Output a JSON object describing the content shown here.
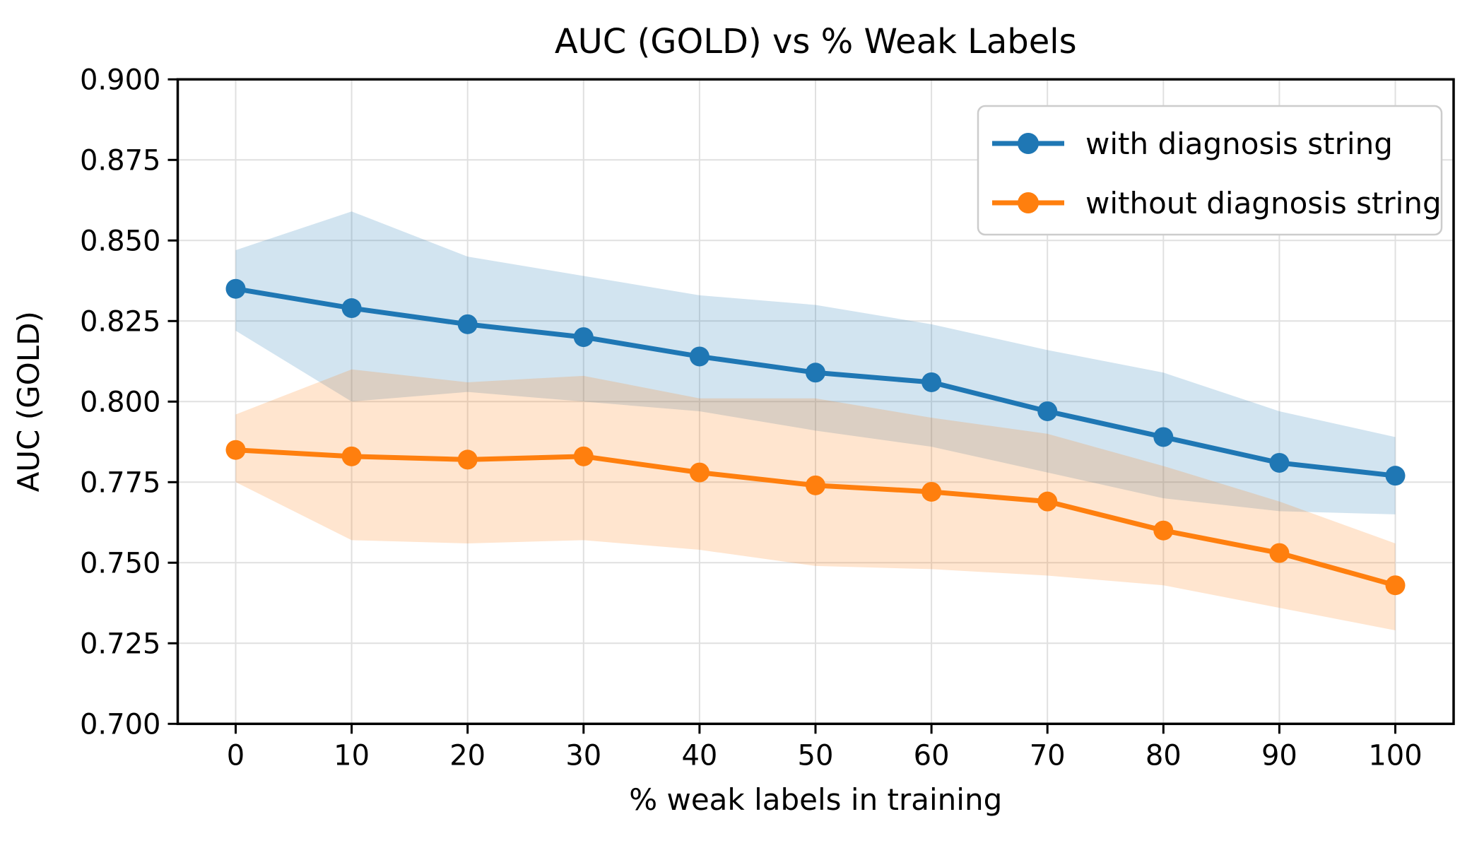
{
  "figure": {
    "background": "#ffffff",
    "grid_color": "#e0e0e0",
    "spine_color": "#000000",
    "legend_border_color": "#cccccc"
  },
  "chart_data": {
    "type": "line",
    "title": "AUC (GOLD) vs % Weak Labels",
    "xlabel": "% weak labels in training",
    "ylabel": "AUC (GOLD)",
    "x": [
      0,
      10,
      20,
      30,
      40,
      50,
      60,
      70,
      80,
      90,
      100
    ],
    "xtick_labels": [
      "0",
      "10",
      "20",
      "30",
      "40",
      "50",
      "60",
      "70",
      "80",
      "90",
      "100"
    ],
    "yticks": [
      0.7,
      0.725,
      0.75,
      0.775,
      0.8,
      0.825,
      0.85,
      0.875,
      0.9
    ],
    "ytick_labels": [
      "0.700",
      "0.725",
      "0.750",
      "0.775",
      "0.800",
      "0.825",
      "0.850",
      "0.875",
      "0.900"
    ],
    "xlim": [
      -5,
      105
    ],
    "ylim": [
      0.7,
      0.9
    ],
    "grid": true,
    "legend_position": "upper right",
    "band_opacity": 0.2,
    "series": [
      {
        "name": "with diagnosis string",
        "color": "#1f77b4",
        "values": [
          0.835,
          0.829,
          0.824,
          0.82,
          0.814,
          0.809,
          0.806,
          0.797,
          0.789,
          0.781,
          0.777
        ],
        "band_upper": [
          0.847,
          0.859,
          0.845,
          0.839,
          0.833,
          0.83,
          0.824,
          0.816,
          0.809,
          0.797,
          0.789
        ],
        "band_lower": [
          0.822,
          0.8,
          0.803,
          0.8,
          0.797,
          0.791,
          0.786,
          0.778,
          0.77,
          0.766,
          0.765
        ]
      },
      {
        "name": "without diagnosis string",
        "color": "#ff7f0e",
        "values": [
          0.785,
          0.783,
          0.782,
          0.783,
          0.778,
          0.774,
          0.772,
          0.769,
          0.76,
          0.753,
          0.743
        ],
        "band_upper": [
          0.796,
          0.81,
          0.806,
          0.808,
          0.801,
          0.801,
          0.795,
          0.79,
          0.78,
          0.769,
          0.756
        ],
        "band_lower": [
          0.775,
          0.757,
          0.756,
          0.757,
          0.754,
          0.749,
          0.748,
          0.746,
          0.743,
          0.736,
          0.729
        ]
      }
    ]
  }
}
